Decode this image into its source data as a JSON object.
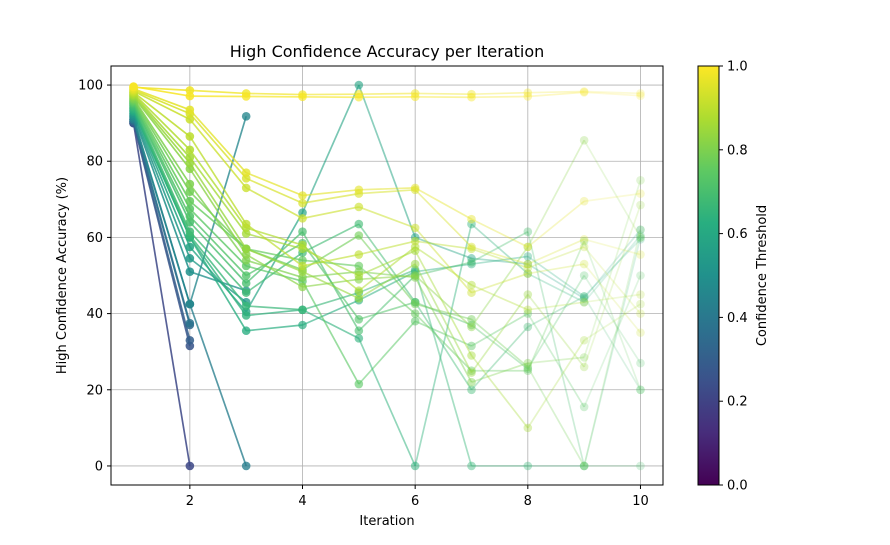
{
  "chart_data": {
    "type": "line",
    "title": "High Confidence Accuracy per Iteration",
    "xlabel": "Iteration",
    "ylabel": "High Confidence Accuracy (%)",
    "xlim": [
      0.6,
      10.4
    ],
    "ylim": [
      -5,
      105
    ],
    "x_ticks": [
      2,
      4,
      6,
      8,
      10
    ],
    "y_ticks": [
      0,
      20,
      40,
      60,
      80,
      100
    ],
    "grid": true,
    "colormap": "viridis",
    "colorbar": {
      "label": "Confidence Threshold",
      "range": [
        0.0,
        1.0
      ],
      "ticks": [
        "0.0",
        "0.2",
        "0.4",
        "0.6",
        "0.8",
        "1.0"
      ]
    },
    "series": [
      {
        "threshold": 0.99,
        "x": [
          1,
          2,
          3,
          4,
          5,
          6,
          7,
          8,
          9,
          10
        ],
        "y": [
          99.6,
          97.1,
          97.0,
          96.9,
          96.8,
          96.9,
          96.8,
          97.0,
          98.1,
          97.2
        ]
      },
      {
        "threshold": 0.98,
        "x": [
          1,
          2,
          3,
          4,
          5,
          6,
          7,
          8,
          9,
          10
        ],
        "y": [
          99.4,
          98.6,
          97.8,
          97.5,
          97.6,
          97.8,
          97.6,
          98.0,
          98.3,
          97.8
        ]
      },
      {
        "threshold": 0.96,
        "x": [
          1,
          2,
          3,
          4,
          5,
          6,
          7,
          8,
          9,
          10
        ],
        "y": [
          99.0,
          93.5,
          77.0,
          71.0,
          72.5,
          73.0,
          64.8,
          57.5,
          69.5,
          71.5
        ]
      },
      {
        "threshold": 0.94,
        "x": [
          1,
          2,
          3,
          4,
          5,
          6,
          7,
          8,
          9,
          10
        ],
        "y": [
          98.7,
          92.5,
          75.5,
          69.0,
          71.5,
          72.5,
          57.5,
          53.0,
          59.5,
          55.5
        ]
      },
      {
        "threshold": 0.92,
        "x": [
          1,
          2,
          3,
          4,
          5,
          6,
          7,
          8,
          9,
          10
        ],
        "y": [
          98.4,
          91.0,
          73.0,
          65.0,
          68.0,
          62.5,
          45.5,
          50.5,
          53.0,
          35.0
        ]
      },
      {
        "threshold": 0.9,
        "x": [
          1,
          2,
          3,
          4,
          5,
          6,
          7,
          8,
          9,
          10
        ],
        "y": [
          98.1,
          86.5,
          63.5,
          52.5,
          55.5,
          59.0,
          57.0,
          52.0,
          57.5,
          40.0
        ]
      },
      {
        "threshold": 0.88,
        "x": [
          1,
          2,
          3,
          4,
          5,
          6,
          7,
          8,
          9,
          10
        ],
        "y": [
          97.8,
          83.0,
          62.5,
          58.0,
          46.0,
          57.5,
          47.5,
          41.0,
          43.0,
          45.0
        ]
      },
      {
        "threshold": 0.86,
        "x": [
          1,
          2,
          3,
          4,
          5,
          6,
          7,
          8,
          9,
          10
        ],
        "y": [
          97.5,
          81.0,
          61.0,
          57.0,
          50.0,
          56.5,
          29.0,
          10.0,
          33.0,
          42.5
        ]
      },
      {
        "threshold": 0.84,
        "x": [
          1,
          2,
          3,
          4,
          5,
          6,
          7,
          8,
          9,
          10
        ],
        "y": [
          97.2,
          79.5,
          57.0,
          51.0,
          44.0,
          53.0,
          24.5,
          45.0,
          26.0,
          68.5
        ]
      },
      {
        "threshold": 0.82,
        "x": [
          1,
          2,
          3,
          4,
          5,
          6,
          7,
          8,
          9,
          10
        ],
        "y": [
          96.9,
          78.0,
          55.5,
          47.0,
          49.0,
          50.0,
          36.5,
          57.5,
          85.5,
          60.0
        ]
      },
      {
        "threshold": 0.8,
        "x": [
          1,
          2,
          3,
          4,
          5,
          6,
          7,
          8,
          9,
          10
        ],
        "y": [
          96.5,
          74.0,
          54.0,
          49.5,
          51.0,
          49.5,
          22.0,
          27.0,
          28.5,
          75.0
        ]
      },
      {
        "threshold": 0.78,
        "x": [
          1,
          2,
          3,
          4,
          5,
          6,
          7,
          8,
          9,
          10
        ],
        "y": [
          96.2,
          72.0,
          57.0,
          51.5,
          60.5,
          42.5,
          38.5,
          26.0,
          0.0,
          62.0
        ]
      },
      {
        "threshold": 0.76,
        "x": [
          1,
          2,
          3,
          4,
          5,
          6,
          7,
          8,
          9,
          10
        ],
        "y": [
          95.9,
          69.5,
          57.0,
          54.0,
          52.5,
          40.0,
          25.0,
          25.0,
          59.0,
          20.0
        ]
      },
      {
        "threshold": 0.74,
        "x": [
          1,
          2,
          3,
          4,
          5,
          6,
          7,
          8,
          9,
          10
        ],
        "y": [
          95.6,
          67.5,
          52.5,
          48.5,
          21.5,
          38.0,
          31.5,
          40.0,
          15.5,
          50.0
        ]
      },
      {
        "threshold": 0.72,
        "x": [
          1,
          2,
          3,
          4,
          5,
          6,
          7,
          8,
          9,
          10
        ],
        "y": [
          95.3,
          65.5,
          50.0,
          58.5,
          38.5,
          43.0,
          37.0,
          25.5,
          50.0,
          27.0
        ]
      },
      {
        "threshold": 0.7,
        "x": [
          1,
          2,
          3,
          4,
          5,
          6,
          7,
          8,
          9,
          10
        ],
        "y": [
          95.0,
          64.0,
          48.0,
          61.5,
          35.5,
          50.0,
          53.5,
          61.5,
          0.0,
          0.0
        ]
      },
      {
        "threshold": 0.68,
        "x": [
          1,
          2,
          3,
          4,
          5,
          6,
          7,
          8,
          9,
          10
        ],
        "y": [
          94.6,
          61.5,
          45.5,
          56.0,
          63.5,
          43.0,
          20.0,
          36.5,
          44.5,
          20.0
        ]
      },
      {
        "threshold": 0.66,
        "x": [
          1,
          2,
          3,
          4,
          5,
          6,
          7,
          8,
          9,
          10
        ],
        "y": [
          94.2,
          60.5,
          42.0,
          41.0,
          45.5,
          51.5,
          0.0,
          0.0,
          0.0,
          60.0
        ]
      },
      {
        "threshold": 0.64,
        "x": [
          1,
          2,
          3,
          4,
          5,
          6,
          7,
          8,
          9,
          10
        ],
        "y": [
          93.8,
          60.0,
          39.5,
          41.0,
          33.5,
          0.0,
          63.5,
          50.5,
          43.0,
          60.5
        ]
      },
      {
        "threshold": 0.62,
        "x": [
          1,
          2,
          3,
          4,
          5,
          6,
          7,
          8,
          9,
          10
        ],
        "y": [
          93.4,
          60.0,
          35.5,
          37.0,
          43.5,
          51.0,
          53.0,
          55.0,
          44.5,
          59.5
        ]
      },
      {
        "threshold": 0.58,
        "x": [
          1,
          2,
          3,
          4,
          5,
          6,
          7,
          8,
          9,
          10
        ],
        "y": [
          93.0,
          57.5,
          40.5,
          66.5,
          100.0,
          60.0,
          54.5,
          53.0,
          44.0,
          62.0
        ]
      },
      {
        "threshold": 0.54,
        "x": [
          1,
          2,
          3
        ],
        "y": [
          92.5,
          54.5,
          43.0
        ]
      },
      {
        "threshold": 0.5,
        "x": [
          1,
          2,
          3
        ],
        "y": [
          92.0,
          51.0,
          46.0
        ]
      },
      {
        "threshold": 0.46,
        "x": [
          1,
          2,
          3
        ],
        "y": [
          91.5,
          42.5,
          91.8
        ]
      },
      {
        "threshold": 0.42,
        "x": [
          1,
          2,
          3
        ],
        "y": [
          91.0,
          42.5,
          0.0
        ]
      },
      {
        "threshold": 0.38,
        "x": [
          1,
          2
        ],
        "y": [
          91.0,
          37.5
        ]
      },
      {
        "threshold": 0.34,
        "x": [
          1,
          2
        ],
        "y": [
          90.5,
          37.0
        ]
      },
      {
        "threshold": 0.3,
        "x": [
          1,
          2
        ],
        "y": [
          90.5,
          33.0
        ]
      },
      {
        "threshold": 0.26,
        "x": [
          1,
          2
        ],
        "y": [
          90.0,
          31.5
        ]
      },
      {
        "threshold": 0.22,
        "x": [
          1,
          2
        ],
        "y": [
          90.0,
          0.0
        ]
      }
    ]
  }
}
